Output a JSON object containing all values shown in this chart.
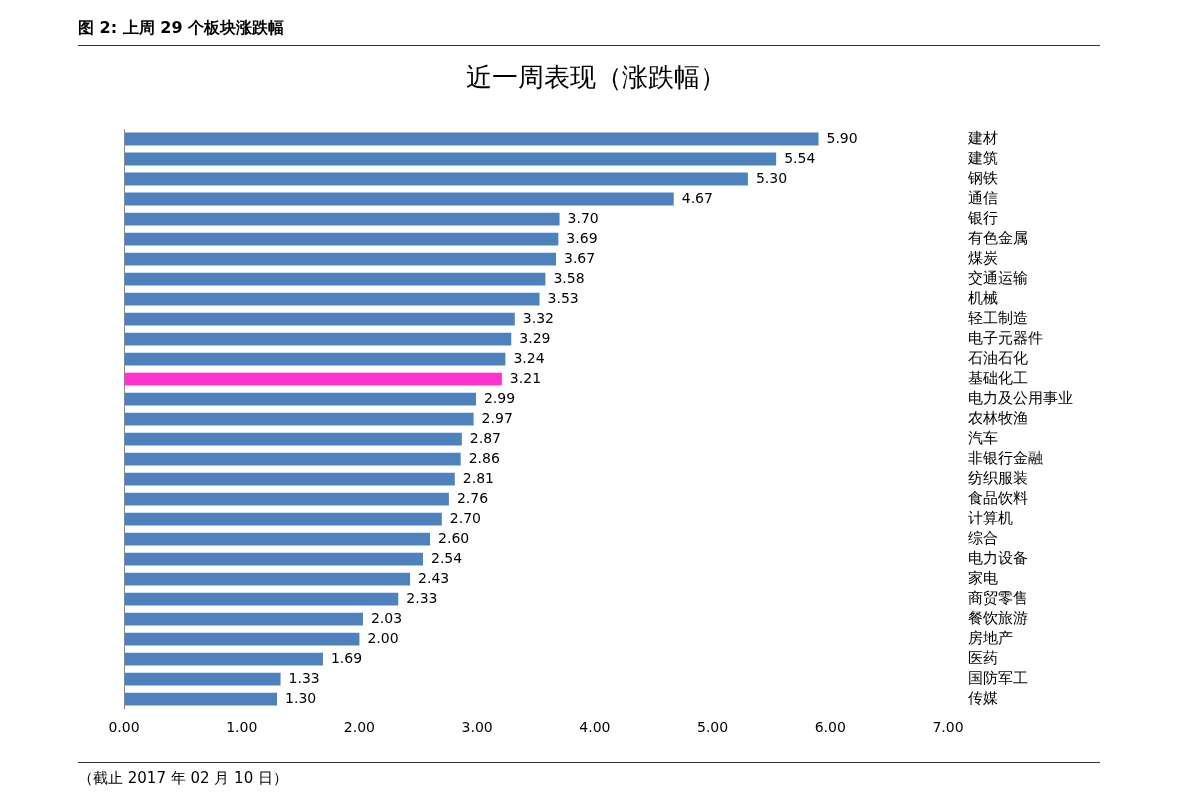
{
  "chart_data": {
    "type": "bar",
    "orientation": "horizontal",
    "title": "图 2: 上周 29 个板块涨跌幅",
    "subtitle": "近一周表现（涨跌幅）",
    "categories": [
      "建材",
      "建筑",
      "钢铁",
      "通信",
      "银行",
      "有色金属",
      "煤炭",
      "交通运输",
      "机械",
      "轻工制造",
      "电子元器件",
      "石油石化",
      "基础化工",
      "电力及公用事业",
      "农林牧渔",
      "汽车",
      "非银行金融",
      "纺织服装",
      "食品饮料",
      "计算机",
      "综合",
      "电力设备",
      "家电",
      "商贸零售",
      "餐饮旅游",
      "房地产",
      "医药",
      "国防军工",
      "传媒"
    ],
    "values": [
      5.9,
      5.54,
      5.3,
      4.67,
      3.7,
      3.69,
      3.67,
      3.58,
      3.53,
      3.32,
      3.29,
      3.24,
      3.21,
      2.99,
      2.97,
      2.87,
      2.86,
      2.81,
      2.76,
      2.7,
      2.6,
      2.54,
      2.43,
      2.33,
      2.03,
      2.0,
      1.69,
      1.33,
      1.3
    ],
    "value_labels": [
      "5.90",
      "5.54",
      "5.30",
      "4.67",
      "3.70",
      "3.69",
      "3.67",
      "3.58",
      "3.53",
      "3.32",
      "3.29",
      "3.24",
      "3.21",
      "2.99",
      "2.97",
      "2.87",
      "2.86",
      "2.81",
      "2.76",
      "2.70",
      "2.60",
      "2.54",
      "2.43",
      "2.33",
      "2.03",
      "2.00",
      "1.69",
      "1.33",
      "1.30"
    ],
    "colors": [
      "#4f81bd",
      "#4f81bd",
      "#4f81bd",
      "#4f81bd",
      "#4f81bd",
      "#4f81bd",
      "#4f81bd",
      "#4f81bd",
      "#4f81bd",
      "#4f81bd",
      "#4f81bd",
      "#4f81bd",
      "#ff33cc",
      "#4f81bd",
      "#4f81bd",
      "#4f81bd",
      "#4f81bd",
      "#4f81bd",
      "#4f81bd",
      "#4f81bd",
      "#4f81bd",
      "#4f81bd",
      "#4f81bd",
      "#4f81bd",
      "#4f81bd",
      "#4f81bd",
      "#4f81bd",
      "#4f81bd",
      "#4f81bd"
    ],
    "xlim": [
      0,
      7
    ],
    "xticks": [
      {
        "value": 0,
        "label": "0.00"
      },
      {
        "value": 1,
        "label": "1.00"
      },
      {
        "value": 2,
        "label": "2.00"
      },
      {
        "value": 3,
        "label": "3.00"
      },
      {
        "value": 4,
        "label": "4.00"
      },
      {
        "value": 5,
        "label": "5.00"
      },
      {
        "value": 6,
        "label": "6.00"
      },
      {
        "value": 7,
        "label": "7.00"
      }
    ],
    "annotations": [
      "（截止 2017 年 02 月 10 日）"
    ]
  }
}
